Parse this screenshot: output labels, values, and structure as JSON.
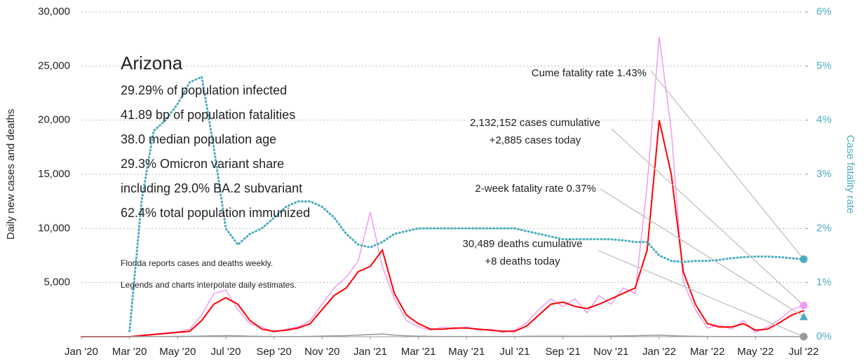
{
  "chart_data": {
    "type": "line",
    "ylabel": "Daily new cases and deaths",
    "y2label": "Case fatality rate",
    "xlim": [
      0,
      30
    ],
    "xticks": [
      {
        "value": 0,
        "label": "Jan '20"
      },
      {
        "value": 2,
        "label": "Mar '20"
      },
      {
        "value": 4,
        "label": "May '20"
      },
      {
        "value": 6,
        "label": "Jul '20"
      },
      {
        "value": 8,
        "label": "Sep '20"
      },
      {
        "value": 10,
        "label": "Nov '20"
      },
      {
        "value": 12,
        "label": "Jan '21"
      },
      {
        "value": 14,
        "label": "Mar '21"
      },
      {
        "value": 16,
        "label": "May '21"
      },
      {
        "value": 18,
        "label": "Jul '21"
      },
      {
        "value": 20,
        "label": "Sep '21"
      },
      {
        "value": 22,
        "label": "Nov '21"
      },
      {
        "value": 24,
        "label": "Jan '22"
      },
      {
        "value": 26,
        "label": "Mar '22"
      },
      {
        "value": 28,
        "label": "May '22"
      },
      {
        "value": 30,
        "label": "Jul '22"
      }
    ],
    "ylim": [
      0,
      30000
    ],
    "yticks": [
      {
        "value": 5000,
        "label": "5,000"
      },
      {
        "value": 10000,
        "label": "10,000"
      },
      {
        "value": 15000,
        "label": "15,000"
      },
      {
        "value": 20000,
        "label": "20,000"
      },
      {
        "value": 25000,
        "label": "25,000"
      },
      {
        "value": 30000,
        "label": "30,000"
      }
    ],
    "y2lim": [
      0,
      6
    ],
    "y2ticks": [
      {
        "value": 0,
        "label": "0%"
      },
      {
        "value": 1,
        "label": "1%"
      },
      {
        "value": 2,
        "label": "2%"
      },
      {
        "value": 3,
        "label": "3%"
      },
      {
        "value": 4,
        "label": "4%"
      },
      {
        "value": 5,
        "label": "5%"
      },
      {
        "value": 6,
        "label": "6%"
      }
    ],
    "grid": true,
    "x": [
      0,
      0.5,
      1,
      1.5,
      2,
      2.5,
      3,
      3.5,
      4,
      4.5,
      5,
      5.5,
      6,
      6.5,
      7,
      7.5,
      8,
      8.5,
      9,
      9.5,
      10,
      10.5,
      11,
      11.5,
      12,
      12.5,
      13,
      13.5,
      14,
      14.5,
      15,
      15.5,
      16,
      16.5,
      17,
      17.5,
      18,
      18.5,
      19,
      19.5,
      20,
      20.5,
      21,
      21.5,
      22,
      22.5,
      23,
      23.5,
      24,
      24.5,
      25,
      25.5,
      26,
      26.5,
      27,
      27.5,
      28,
      28.5,
      29,
      29.5,
      30
    ],
    "series": [
      {
        "color": "#f09cf0",
        "width": 1.5,
        "values": [
          0,
          0,
          0,
          0,
          0,
          150,
          250,
          350,
          450,
          700,
          2000,
          4000,
          4300,
          2500,
          1200,
          900,
          400,
          700,
          900,
          1500,
          3000,
          4500,
          5500,
          7000,
          11500,
          6500,
          3500,
          1500,
          900,
          600,
          900,
          700,
          900,
          600,
          700,
          400,
          600,
          1300,
          2500,
          3500,
          2800,
          3500,
          2200,
          3800,
          3000,
          4500,
          4000,
          14000,
          27700,
          19000,
          5000,
          2500,
          800,
          1100,
          700,
          1500,
          400,
          900,
          1600,
          2500,
          2885
        ]
      },
      {
        "color": "#ff0000",
        "width": 2,
        "values": [
          0,
          0,
          0,
          0,
          0,
          100,
          200,
          300,
          400,
          500,
          1500,
          3000,
          3600,
          3000,
          1500,
          700,
          500,
          600,
          800,
          1200,
          2500,
          3800,
          4500,
          6000,
          6500,
          8000,
          4000,
          2000,
          1200,
          700,
          700,
          800,
          800,
          700,
          600,
          500,
          500,
          1000,
          2000,
          3000,
          3200,
          2800,
          2600,
          3000,
          3500,
          4000,
          4500,
          8000,
          20000,
          15000,
          6000,
          3000,
          1200,
          900,
          900,
          1200,
          600,
          700,
          1300,
          2000,
          2400
        ]
      },
      {
        "color": "#999999",
        "width": 1.5,
        "values": [
          0,
          0,
          0,
          0,
          0,
          5,
          10,
          20,
          30,
          40,
          60,
          80,
          100,
          80,
          50,
          30,
          20,
          15,
          20,
          30,
          60,
          80,
          100,
          150,
          200,
          250,
          150,
          80,
          50,
          30,
          20,
          15,
          15,
          12,
          10,
          10,
          20,
          40,
          50,
          50,
          45,
          40,
          45,
          50,
          60,
          70,
          90,
          120,
          150,
          100,
          60,
          40,
          20,
          15,
          10,
          10,
          12,
          15,
          10,
          10,
          8
        ]
      },
      {
        "color": "#4aacbf",
        "width": 3,
        "dotted": true,
        "axis": "y2",
        "values": [
          null,
          null,
          null,
          null,
          0.1,
          2.5,
          3.8,
          4.0,
          4.3,
          4.7,
          4.8,
          3.5,
          2.0,
          1.7,
          1.9,
          2.0,
          2.2,
          2.4,
          2.5,
          2.5,
          2.4,
          2.2,
          1.9,
          1.7,
          1.65,
          1.75,
          1.9,
          1.95,
          2.0,
          2.0,
          2.0,
          2.0,
          2.0,
          2.0,
          2.0,
          2.0,
          2.0,
          1.95,
          1.9,
          1.85,
          1.8,
          1.8,
          1.8,
          1.8,
          1.8,
          1.78,
          1.75,
          1.75,
          1.5,
          1.4,
          1.38,
          1.4,
          1.4,
          1.42,
          1.45,
          1.47,
          1.48,
          1.48,
          1.47,
          1.45,
          1.43
        ]
      }
    ],
    "annotations": [
      {
        "lines": [
          "Cume fatality rate 1.43%"
        ],
        "value": 1.43,
        "axis": "y2",
        "shape": "circle",
        "color": "#4aacbf"
      },
      {
        "lines": [
          "2,132,152 cases cumulative",
          "+2,885 cases today"
        ],
        "value": 2885,
        "axis": "y",
        "shape": "circle",
        "color": "#f09cf0"
      },
      {
        "lines": [
          "2-week fatality rate 0.37%"
        ],
        "value": 0.37,
        "axis": "y2",
        "shape": "triangle",
        "color": "#4aacbf"
      },
      {
        "lines": [
          "30,489 deaths cumulative",
          "+8 deaths today"
        ],
        "value": 8,
        "axis": "y",
        "shape": "circle",
        "color": "#999999"
      }
    ],
    "info": {
      "title": "Arizona",
      "lines": [
        "29.29% of population infected",
        "41.89 bp of population fatalities",
        "38.0 median population age",
        "29.3% Omicron variant share",
        "including 29.0% BA.2 subvariant",
        "62.4% total population immunized"
      ]
    },
    "notes": [
      "Florida reports cases and deaths weekly.",
      "Legends and charts interpolate daily estimates."
    ]
  }
}
